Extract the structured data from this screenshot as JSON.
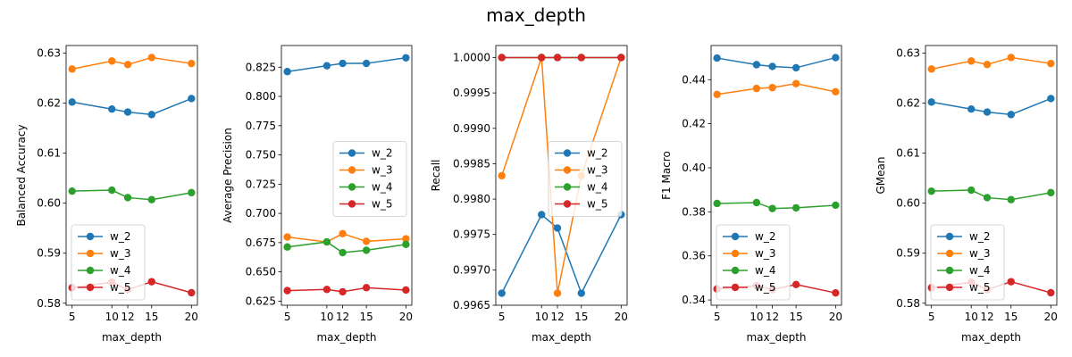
{
  "figure": {
    "suptitle": "max_depth"
  },
  "colors": {
    "w_2": "#1f77b4",
    "w_3": "#ff7f0e",
    "w_4": "#2ca02c",
    "w_5": "#d62728"
  },
  "chart_data": [
    {
      "type": "line",
      "xlabel": "max_depth",
      "ylabel": "Balanced Accuracy",
      "x": [
        5,
        10,
        12,
        15,
        20
      ],
      "xticks": [
        "5",
        "10",
        "12",
        "15",
        "20"
      ],
      "xlim": [
        4.25,
        20.75
      ],
      "ylim": [
        0.5796,
        0.6315
      ],
      "yticks": [
        "0.58",
        "0.59",
        "0.60",
        "0.61",
        "0.62",
        "0.63"
      ],
      "ytick_values": [
        0.58,
        0.59,
        0.6,
        0.61,
        0.62,
        0.63
      ],
      "legend": "lower-left",
      "series": [
        {
          "name": "w_2",
          "values": [
            0.6202,
            0.6188,
            0.6182,
            0.6177,
            0.6209
          ]
        },
        {
          "name": "w_3",
          "values": [
            0.6268,
            0.6284,
            0.6277,
            0.6291,
            0.6279
          ]
        },
        {
          "name": "w_4",
          "values": [
            0.6024,
            0.6026,
            0.6011,
            0.6007,
            0.6021
          ]
        },
        {
          "name": "w_5",
          "values": [
            0.5831,
            0.5842,
            0.5827,
            0.5843,
            0.5821
          ]
        }
      ]
    },
    {
      "type": "line",
      "xlabel": "max_depth",
      "ylabel": "Average Precision",
      "x": [
        5,
        10,
        12,
        15,
        20
      ],
      "xticks": [
        "5",
        "10",
        "12",
        "15",
        "20"
      ],
      "xlim": [
        4.25,
        20.75
      ],
      "ylim": [
        0.6215,
        0.8435
      ],
      "yticks": [
        "0.625",
        "0.650",
        "0.675",
        "0.700",
        "0.725",
        "0.750",
        "0.775",
        "0.800",
        "0.825"
      ],
      "ytick_values": [
        0.625,
        0.65,
        0.675,
        0.7,
        0.725,
        0.75,
        0.775,
        0.8,
        0.825
      ],
      "legend": "center-right",
      "series": [
        {
          "name": "w_2",
          "values": [
            0.8212,
            0.8262,
            0.8282,
            0.8282,
            0.833
          ]
        },
        {
          "name": "w_3",
          "values": [
            0.6798,
            0.6756,
            0.6827,
            0.6761,
            0.6783
          ]
        },
        {
          "name": "w_4",
          "values": [
            0.6713,
            0.6756,
            0.6665,
            0.6685,
            0.6735
          ]
        },
        {
          "name": "w_5",
          "values": [
            0.634,
            0.635,
            0.633,
            0.6365,
            0.6345
          ]
        }
      ]
    },
    {
      "type": "line",
      "xlabel": "max_depth",
      "ylabel": "Recall",
      "x": [
        5,
        10,
        12,
        15,
        20
      ],
      "xticks": [
        "5",
        "10",
        "12",
        "15",
        "20"
      ],
      "xlim": [
        4.25,
        20.75
      ],
      "ylim": [
        0.9965,
        1.00017
      ],
      "yticks": [
        "0.9965",
        "0.9970",
        "0.9975",
        "0.9980",
        "0.9985",
        "0.9990",
        "0.9995",
        "1.0000"
      ],
      "ytick_values": [
        0.9965,
        0.997,
        0.9975,
        0.998,
        0.9985,
        0.999,
        0.9995,
        1.0
      ],
      "legend": "center-right",
      "series": [
        {
          "name": "w_2",
          "values": [
            0.99667,
            0.99778,
            0.99759,
            0.99667,
            0.99778
          ]
        },
        {
          "name": "w_3",
          "values": [
            0.99833,
            1.0,
            0.99667,
            0.99833,
            1.0
          ]
        },
        {
          "name": "w_4",
          "values": [
            1.0,
            1.0,
            1.0,
            1.0,
            1.0
          ]
        },
        {
          "name": "w_5",
          "values": [
            1.0,
            1.0,
            1.0,
            1.0,
            1.0
          ]
        }
      ]
    },
    {
      "type": "line",
      "xlabel": "max_depth",
      "ylabel": "F1 Macro",
      "x": [
        5,
        10,
        12,
        15,
        20
      ],
      "xticks": [
        "5",
        "10",
        "12",
        "15",
        "20"
      ],
      "xlim": [
        4.25,
        20.75
      ],
      "ylim": [
        0.3376,
        0.4555
      ],
      "yticks": [
        "0.34",
        "0.36",
        "0.38",
        "0.40",
        "0.42",
        "0.44"
      ],
      "ytick_values": [
        0.34,
        0.36,
        0.38,
        0.4,
        0.42,
        0.44
      ],
      "legend": "lower-left",
      "series": [
        {
          "name": "w_2",
          "values": [
            0.4498,
            0.4468,
            0.446,
            0.4454,
            0.45
          ]
        },
        {
          "name": "w_3",
          "values": [
            0.4333,
            0.436,
            0.4364,
            0.4382,
            0.4345
          ]
        },
        {
          "name": "w_4",
          "values": [
            0.3838,
            0.3842,
            0.3815,
            0.3818,
            0.383
          ]
        },
        {
          "name": "w_5",
          "values": [
            0.345,
            0.3465,
            0.3447,
            0.347,
            0.3432
          ]
        }
      ]
    },
    {
      "type": "line",
      "xlabel": "max_depth",
      "ylabel": "GMean",
      "x": [
        5,
        10,
        12,
        15,
        20
      ],
      "xticks": [
        "5",
        "10",
        "12",
        "15",
        "20"
      ],
      "xlim": [
        4.25,
        20.75
      ],
      "ylim": [
        0.5796,
        0.6315
      ],
      "yticks": [
        "0.58",
        "0.59",
        "0.60",
        "0.61",
        "0.62",
        "0.63"
      ],
      "ytick_values": [
        0.58,
        0.59,
        0.6,
        0.61,
        0.62,
        0.63
      ],
      "legend": "lower-left",
      "series": [
        {
          "name": "w_2",
          "values": [
            0.6202,
            0.6188,
            0.6182,
            0.6177,
            0.6209
          ]
        },
        {
          "name": "w_3",
          "values": [
            0.6268,
            0.6284,
            0.6277,
            0.6291,
            0.6279
          ]
        },
        {
          "name": "w_4",
          "values": [
            0.6024,
            0.6026,
            0.6011,
            0.6007,
            0.6021
          ]
        },
        {
          "name": "w_5",
          "values": [
            0.5831,
            0.5842,
            0.5827,
            0.5843,
            0.5821
          ]
        }
      ]
    }
  ]
}
